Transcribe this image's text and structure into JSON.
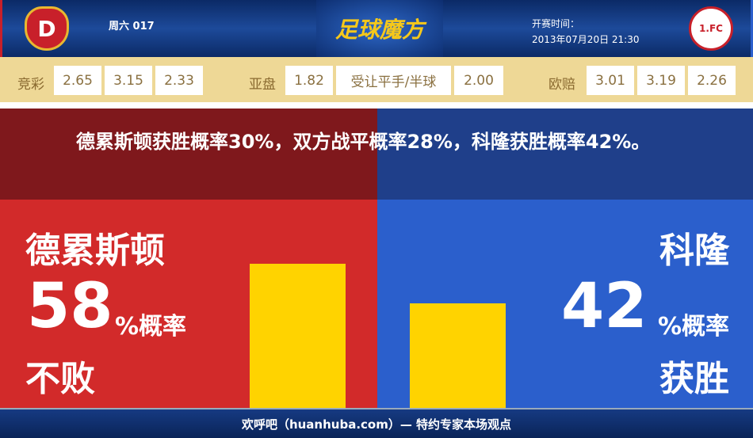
{
  "header": {
    "home_logo_text": "D",
    "away_logo_text": "1.FC",
    "match_no": "周六 017",
    "brand": "足球魔方",
    "kickoff_label": "开赛时间：",
    "kickoff_time": "2013年07月20日 21:30"
  },
  "odds": {
    "jingcai": {
      "label": "竞彩",
      "values": [
        "2.65",
        "3.15",
        "2.33"
      ]
    },
    "asian": {
      "label": "亚盘",
      "home": "1.82",
      "handicap": "受让平手/半球",
      "away": "2.00"
    },
    "euro": {
      "label": "欧赔",
      "values": [
        "3.01",
        "3.19",
        "2.26"
      ]
    }
  },
  "summary": "德累斯顿获胜概率30%，双方战平概率28%，科隆获胜概率42%。",
  "home": {
    "team": "德累斯顿",
    "pct": "58",
    "unit": "%概率",
    "outcome": "不败",
    "bar_value": 58
  },
  "away": {
    "team": "科隆",
    "pct": "42",
    "unit": "%概率",
    "outcome": "获胜",
    "bar_value": 42
  },
  "colors": {
    "home": "#d22a2a",
    "away": "#2b5fcc",
    "bar": "#ffd300"
  },
  "footer": "欢呼吧（huanhuba.com）— 特约专家本场观点"
}
